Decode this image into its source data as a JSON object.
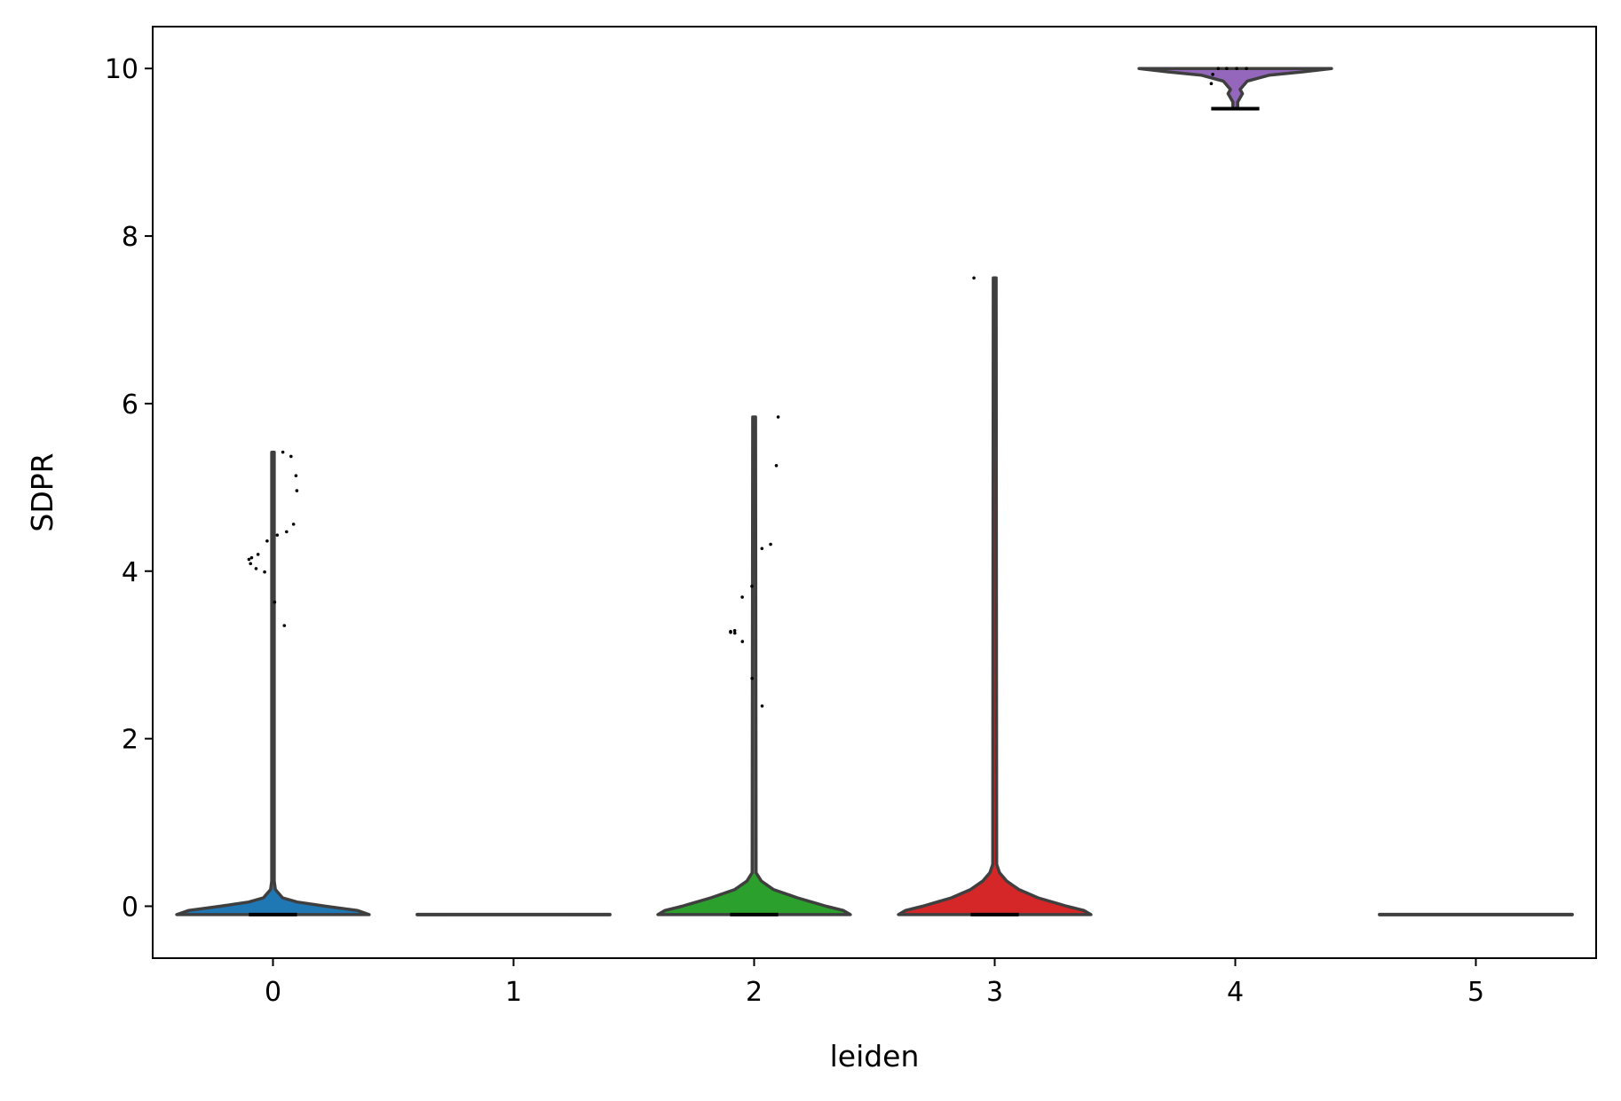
{
  "chart_data": {
    "type": "violin",
    "title": "",
    "xlabel": "leiden",
    "ylabel": "SDPR",
    "categories": [
      "0",
      "1",
      "2",
      "3",
      "4",
      "5"
    ],
    "xlim": [
      -0.5,
      5.5
    ],
    "ylim": [
      -0.62,
      10.5
    ],
    "yticks": [
      0,
      2,
      4,
      6,
      8,
      10
    ],
    "ytick_labels": [
      "0",
      "2",
      "4",
      "6",
      "8",
      "10"
    ],
    "grid": false,
    "legend": "none",
    "colors": [
      "#1f77b4",
      "#ff7f0e",
      "#2ca02c",
      "#d62728",
      "#9467bd",
      "#8c564b"
    ],
    "outline_color": "#3f3f3f",
    "violins": [
      {
        "category": "0",
        "min": -0.1,
        "max": 5.42,
        "profile": [
          [
            -0.1,
            0.4
          ],
          [
            -0.05,
            0.35
          ],
          [
            0.0,
            0.22
          ],
          [
            0.05,
            0.1
          ],
          [
            0.1,
            0.04
          ],
          [
            0.2,
            0.01
          ],
          [
            0.3,
            0.005
          ],
          [
            5.42,
            0.005
          ]
        ]
      },
      {
        "category": "1",
        "min": -0.1,
        "max": -0.1,
        "profile": []
      },
      {
        "category": "2",
        "min": -0.1,
        "max": 5.84,
        "profile": [
          [
            -0.1,
            0.4
          ],
          [
            -0.05,
            0.37
          ],
          [
            0.0,
            0.3
          ],
          [
            0.1,
            0.18
          ],
          [
            0.2,
            0.08
          ],
          [
            0.3,
            0.03
          ],
          [
            0.4,
            0.008
          ],
          [
            5.84,
            0.006
          ]
        ]
      },
      {
        "category": "3",
        "min": -0.1,
        "max": 7.5,
        "profile": [
          [
            -0.1,
            0.4
          ],
          [
            -0.05,
            0.37
          ],
          [
            0.0,
            0.3
          ],
          [
            0.1,
            0.18
          ],
          [
            0.2,
            0.1
          ],
          [
            0.3,
            0.05
          ],
          [
            0.4,
            0.02
          ],
          [
            0.5,
            0.008
          ],
          [
            7.5,
            0.006
          ]
        ]
      },
      {
        "category": "4",
        "min": 9.52,
        "max": 10.0,
        "profile": [
          [
            9.52,
            0.01
          ],
          [
            9.6,
            0.01
          ],
          [
            9.7,
            0.03
          ],
          [
            9.75,
            0.02
          ],
          [
            9.85,
            0.05
          ],
          [
            9.92,
            0.14
          ],
          [
            9.96,
            0.28
          ],
          [
            10.0,
            0.4
          ]
        ]
      },
      {
        "category": "5",
        "min": -0.1,
        "max": -0.1,
        "profile": []
      }
    ],
    "points": [
      {
        "category": "0",
        "values": [
          5.42,
          5.37,
          5.14,
          4.96,
          4.56,
          4.47,
          4.43,
          4.36,
          4.2,
          4.16,
          4.14,
          4.09,
          4.03,
          3.99,
          3.63,
          3.35
        ]
      },
      {
        "category": "2",
        "values": [
          5.84,
          5.26,
          4.32,
          4.27,
          3.82,
          3.69,
          3.29,
          3.28,
          3.27,
          3.26,
          3.16,
          2.72,
          2.39
        ]
      },
      {
        "category": "3",
        "values": [
          7.5
        ]
      },
      {
        "category": "4",
        "values": [
          10.0,
          10.0,
          10.0,
          10.0,
          9.93,
          9.82,
          9.52
        ]
      }
    ]
  }
}
